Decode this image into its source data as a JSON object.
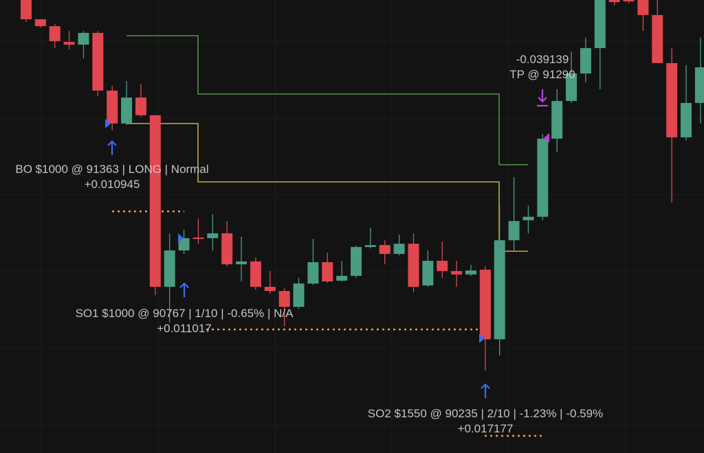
{
  "chart_data": {
    "type": "candlestick",
    "ylim": [
      89650,
      92005
    ],
    "up_color": "#4a9c82",
    "down_color": "#e0474f",
    "candles": [
      [
        92005,
        92005,
        91891,
        91905
      ],
      [
        91905,
        91905,
        91862,
        91869
      ],
      [
        91869,
        91880,
        91755,
        91791
      ],
      [
        91787,
        91844,
        91748,
        91773
      ],
      [
        91773,
        91844,
        91702,
        91834
      ],
      [
        91834,
        91844,
        91505,
        91534
      ],
      [
        91534,
        91559,
        91327,
        91363
      ],
      [
        91363,
        91584,
        91356,
        91498
      ],
      [
        91498,
        91570,
        91398,
        91406
      ],
      [
        91406,
        91406,
        90471,
        90514
      ],
      [
        90514,
        90792,
        90328,
        90703
      ],
      [
        90703,
        90810,
        90685,
        90767
      ],
      [
        90770,
        90870,
        90738,
        90763
      ],
      [
        90767,
        90892,
        90703,
        90792
      ],
      [
        90792,
        90856,
        90621,
        90631
      ],
      [
        90631,
        90774,
        90542,
        90646
      ],
      [
        90646,
        90667,
        90499,
        90514
      ],
      [
        90514,
        90596,
        90478,
        90492
      ],
      [
        90492,
        90506,
        90310,
        90410
      ],
      [
        90410,
        90560,
        90399,
        90531
      ],
      [
        90531,
        90763,
        90524,
        90642
      ],
      [
        90642,
        90692,
        90535,
        90542
      ],
      [
        90546,
        90649,
        90542,
        90571
      ],
      [
        90571,
        90728,
        90560,
        90721
      ],
      [
        90721,
        90820,
        90713,
        90731
      ],
      [
        90731,
        90756,
        90631,
        90685
      ],
      [
        90685,
        90785,
        90678,
        90738
      ],
      [
        90738,
        90792,
        90485,
        90514
      ],
      [
        90521,
        90703,
        90514,
        90649
      ],
      [
        90649,
        90749,
        90560,
        90596
      ],
      [
        90596,
        90649,
        90514,
        90578
      ],
      [
        90578,
        90628,
        90571,
        90599
      ],
      [
        90603,
        90621,
        90079,
        90241
      ],
      [
        90241,
        90935,
        90157,
        90756
      ],
      [
        90756,
        91084,
        90703,
        90856
      ],
      [
        90860,
        90935,
        90792,
        90878
      ],
      [
        90878,
        91309,
        90860,
        91284
      ],
      [
        91284,
        91541,
        91213,
        91480
      ],
      [
        91480,
        91737,
        91470,
        91623
      ],
      [
        91623,
        91809,
        91577,
        91755
      ],
      [
        91755,
        92005,
        91541,
        92005
      ],
      [
        92005,
        92005,
        91976,
        91994
      ],
      [
        92005,
        92005,
        91987,
        92000
      ],
      [
        92005,
        92005,
        91844,
        91927
      ],
      [
        91927,
        92005,
        91677,
        91677
      ],
      [
        91677,
        91755,
        90952,
        91291
      ],
      [
        91291,
        91666,
        91274,
        91470
      ],
      [
        91470,
        91809,
        91363,
        91655
      ]
    ],
    "annotations": {
      "bo": "BO $1000 @ 91363 | LONG | Normal",
      "bo_profit": "+0.010945",
      "so1": "SO1 $1000 @ 90767 | 1/10 | -0.65% | N/A",
      "so1_profit": "+0.011017",
      "so2": "SO2 $1550 @ 90235 | 2/10 | -1.23% | -0.59%",
      "so2_profit": "+0.017177",
      "tp_profit": "-0.039139",
      "tp": "TP @ 91290"
    }
  }
}
